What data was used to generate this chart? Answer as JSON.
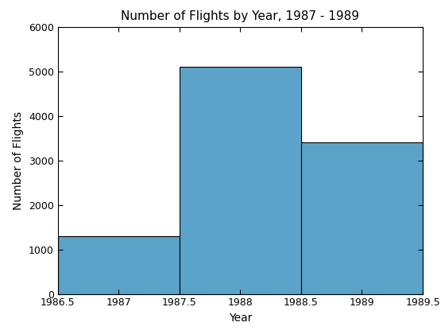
{
  "title": "Number of Flights by Year, 1987 - 1989",
  "xlabel": "Year",
  "ylabel": "Number of Flights",
  "bar_color": "#5BA3C9",
  "bar_edge_color": "#000000",
  "bar_edge_width": 0.8,
  "years": [
    1987,
    1988,
    1989
  ],
  "counts": [
    1300,
    5100,
    3400
  ],
  "xlim": [
    1986.5,
    1989.5
  ],
  "ylim": [
    0,
    6000
  ],
  "xticks": [
    1986.5,
    1987,
    1987.5,
    1988,
    1988.5,
    1989,
    1989.5
  ],
  "xtick_labels": [
    "1986.5",
    "1987",
    "1987.5",
    "1988",
    "1988.5",
    "1989",
    "1989.5"
  ],
  "yticks": [
    0,
    1000,
    2000,
    3000,
    4000,
    5000,
    6000
  ],
  "bin_width": 1.0,
  "background_color": "#ffffff",
  "title_fontsize": 11,
  "label_fontsize": 10,
  "tick_fontsize": 9
}
